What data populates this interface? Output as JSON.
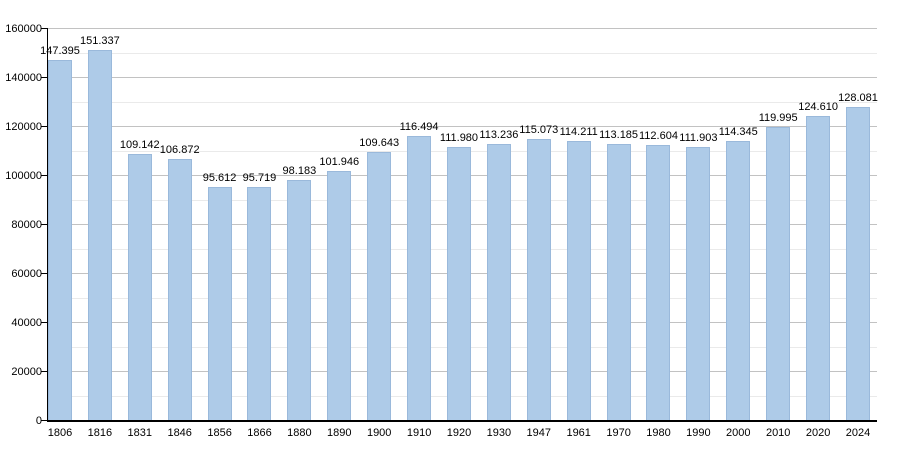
{
  "chart_data": {
    "type": "bar",
    "title": "",
    "xlabel": "",
    "ylabel": "",
    "categories": [
      "1806",
      "1816",
      "1831",
      "1846",
      "1856",
      "1866",
      "1880",
      "1890",
      "1900",
      "1910",
      "1920",
      "1930",
      "1947",
      "1961",
      "1970",
      "1980",
      "1990",
      "2000",
      "2010",
      "2020",
      "2024"
    ],
    "values": [
      147395,
      151337,
      109142,
      106872,
      95612,
      95719,
      98183,
      101946,
      109643,
      116494,
      111980,
      113236,
      115073,
      114211,
      113185,
      112604,
      111903,
      114345,
      119995,
      124610,
      128081
    ],
    "value_labels": [
      "147.395",
      "151.337",
      "109.142",
      "106.872",
      "95.612",
      "95.719",
      "98.183",
      "101.946",
      "109.643",
      "116.494",
      "111.980",
      "113.236",
      "115.073",
      "114.211",
      "113.185",
      "112.604",
      "111.903",
      "114.345",
      "119.995",
      "124.610",
      "128.081"
    ],
    "ylim": [
      0,
      160000
    ],
    "ytick_step": 20000,
    "ytick_minor_step": 10000,
    "ytick_labels": [
      "0",
      "20000",
      "40000",
      "60000",
      "80000",
      "100000",
      "120000",
      "140000",
      "160000"
    ],
    "grid": "on",
    "legend": "none"
  },
  "colors": {
    "bar_fill": "#aecbe8",
    "grid_major": "#c2c2c2",
    "grid_minor": "#eaeaea",
    "axis": "#000000",
    "text": "#000000",
    "background": "#ffffff"
  }
}
